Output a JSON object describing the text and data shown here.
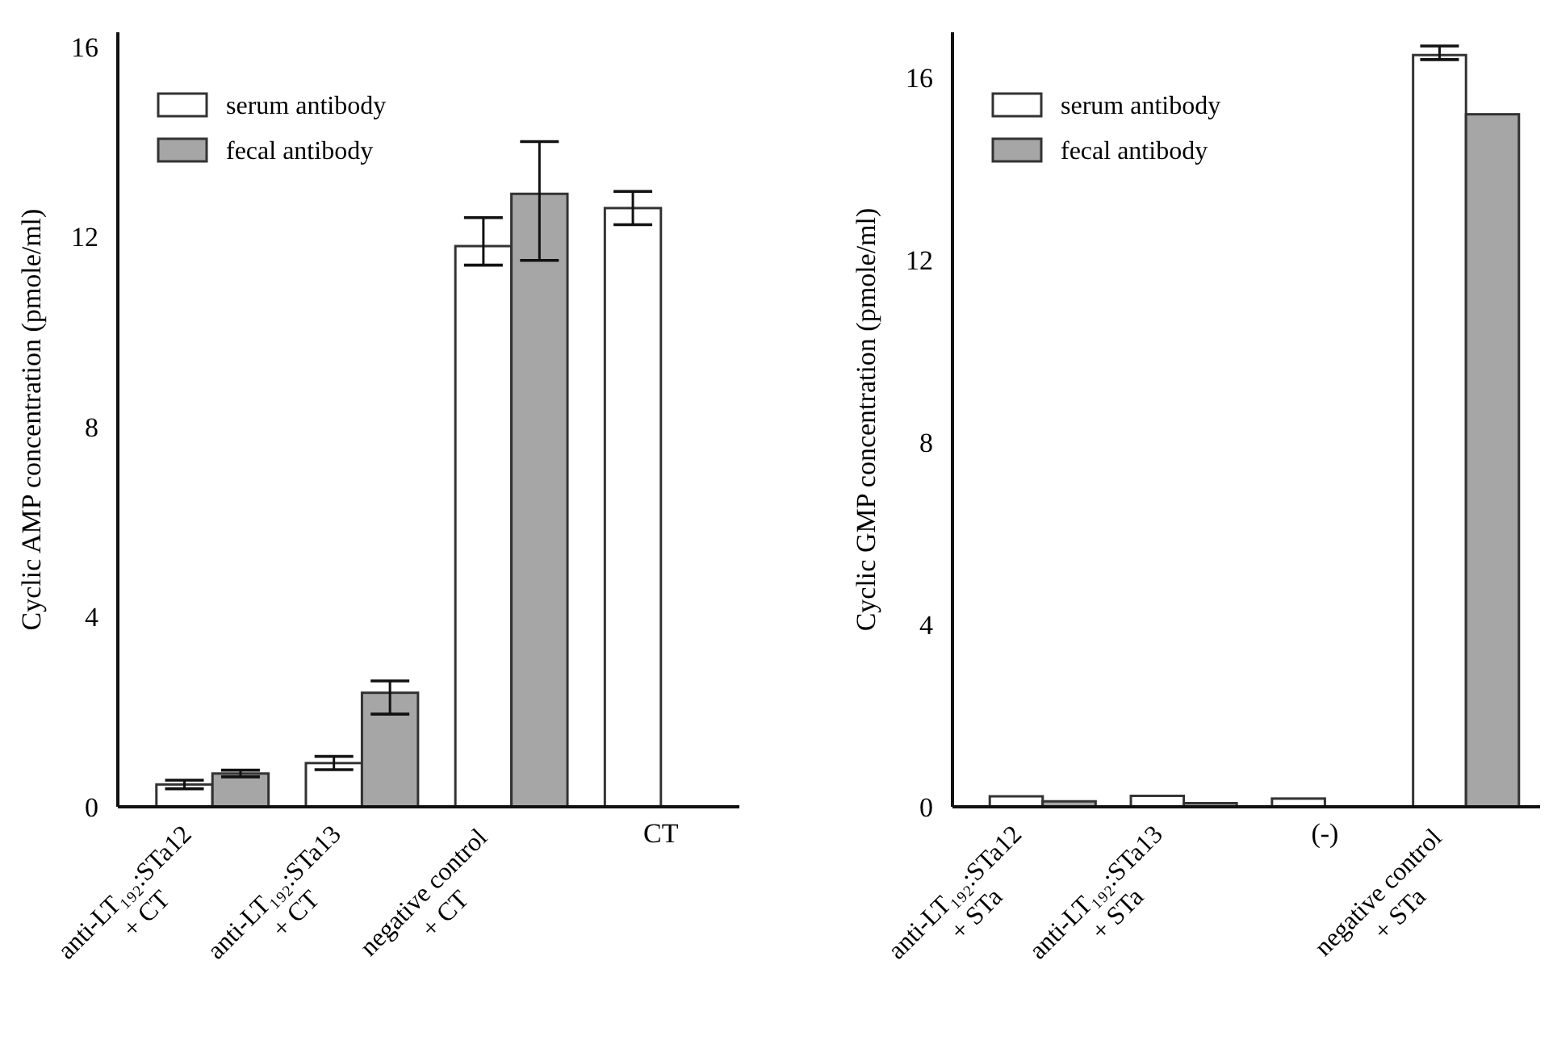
{
  "chart_data": [
    {
      "type": "bar",
      "ylabel": "Cyclic AMP concentration (pmole/ml)",
      "categories": [
        "anti-LT₁₉₂:STa12\n+ CT",
        "anti-LT₁₉₂:STa13\n+ CT",
        "negative control\n+ CT",
        "CT"
      ],
      "series": [
        {
          "name": "serum antibody",
          "color": "#ffffff",
          "values": [
            0.47,
            0.92,
            11.8,
            12.6
          ],
          "errors": [
            0.09,
            0.14,
            [
              11.4,
              12.4
            ],
            [
              12.25,
              12.95
            ]
          ]
        },
        {
          "name": "fecal antibody",
          "color": "#a6a6a6",
          "values": [
            0.7,
            2.4,
            12.9,
            0
          ],
          "errors": [
            0.07,
            [
              1.95,
              2.65
            ],
            [
              11.5,
              14.0
            ],
            null
          ]
        }
      ],
      "ylim": [
        0,
        16.3
      ],
      "yticks": [
        0,
        4,
        8,
        12,
        16
      ],
      "grid": false,
      "legend": "top left"
    },
    {
      "type": "bar",
      "ylabel": "Cyclic GMP concentration (pmole/ml)",
      "categories": [
        "anti-LT₁₉₂:STa12\n+ STa",
        "anti-LT₁₉₂:STa13\n+ STa",
        "(-)",
        "negative control\n+ STa"
      ],
      "series": [
        {
          "name": "serum antibody",
          "color": "#ffffff",
          "values": [
            0.23,
            0.24,
            0.18,
            16.5
          ],
          "errors": [
            null,
            null,
            null,
            [
              16.4,
              16.7
            ]
          ]
        },
        {
          "name": "fecal antibody",
          "color": "#a6a6a6",
          "values": [
            0.12,
            0.08,
            null,
            15.2
          ]
        }
      ],
      "ylim": [
        0,
        17
      ],
      "yticks": [
        0,
        4,
        8,
        12,
        16
      ],
      "grid": false,
      "legend": "top left"
    }
  ]
}
